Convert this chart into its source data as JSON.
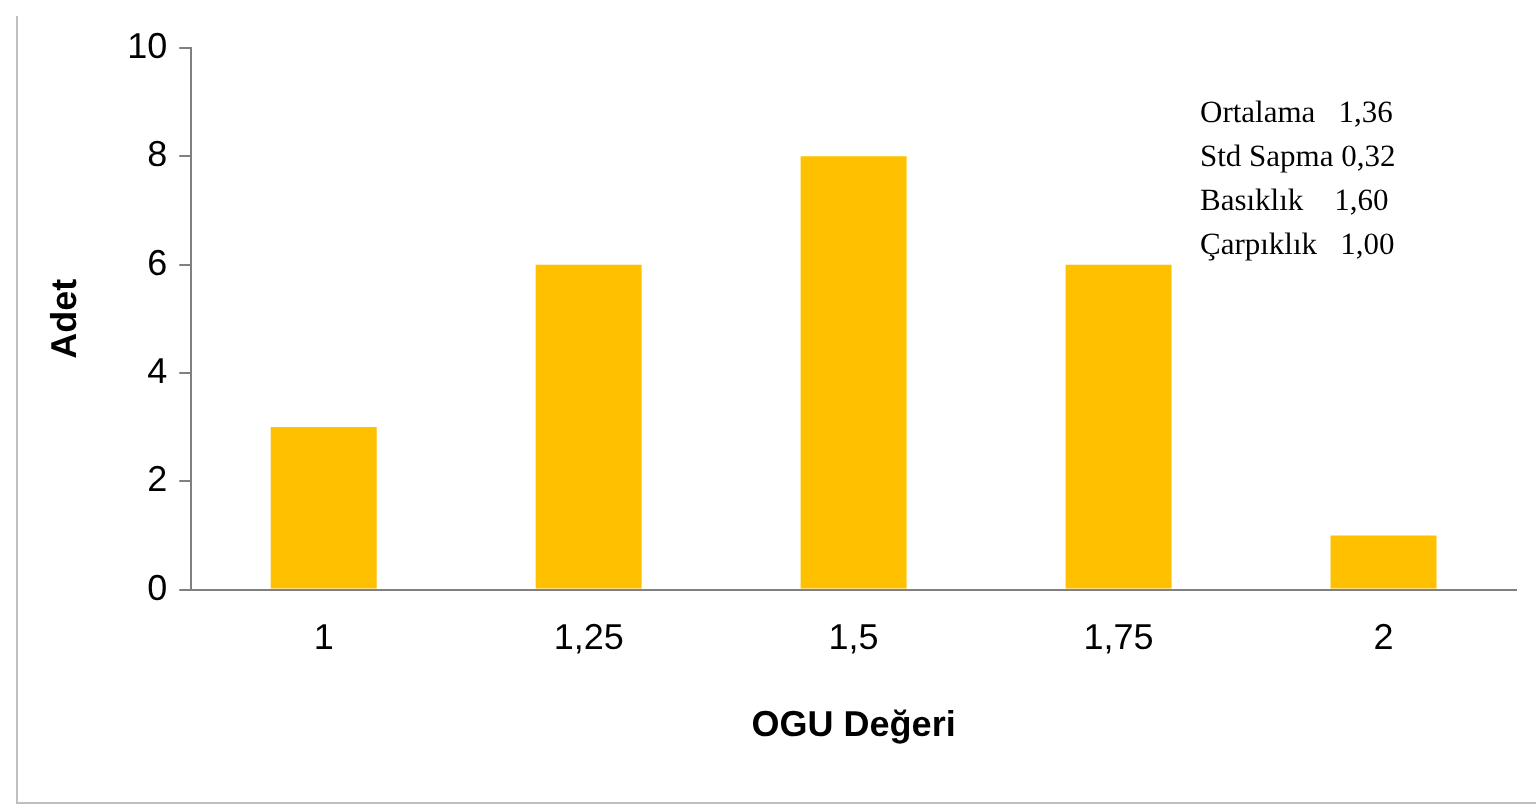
{
  "chart_data": {
    "type": "bar",
    "xlabel": "OGU Değeri",
    "ylabel": "Adet",
    "categories": [
      "1",
      "1,25",
      "1,5",
      "1,75",
      "2"
    ],
    "values": [
      3,
      6,
      8,
      6,
      1
    ],
    "color": "#ffc000",
    "ylim": [
      0,
      10
    ],
    "yticks": [
      0,
      2,
      4,
      6,
      8,
      10
    ],
    "grid": false,
    "legend": false,
    "annotations": [
      "Ortalama   1,36",
      "Std Sapma 0,32",
      "Basıklık    1,60",
      "Çarpıklık   1,00"
    ]
  }
}
